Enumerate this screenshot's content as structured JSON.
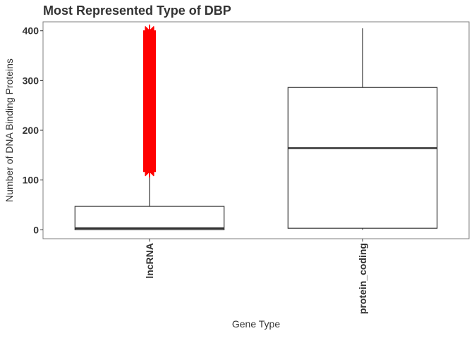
{
  "chart_data": {
    "type": "boxplot",
    "title": "Most Represented Type of DBP",
    "xlabel": "Gene Type",
    "ylabel": "Number of DNA Binding Proteins",
    "ylim": [
      -18,
      418
    ],
    "yticks": [
      0,
      100,
      200,
      300,
      400
    ],
    "grid": false,
    "categories": [
      "lncRNA",
      "protein_coding"
    ],
    "boxes": [
      {
        "name": "lncRNA",
        "whisker_low": 0,
        "q1": 0,
        "median": 3,
        "q3": 47,
        "whisker_high": 117,
        "outlier_range": [
          117,
          400
        ]
      },
      {
        "name": "protein_coding",
        "whisker_low": 0,
        "q1": 3,
        "median": 164,
        "q3": 286,
        "whisker_high": 405,
        "outlier_range": []
      }
    ],
    "outlier_color": "#ff0000",
    "box_color": "#333333"
  }
}
